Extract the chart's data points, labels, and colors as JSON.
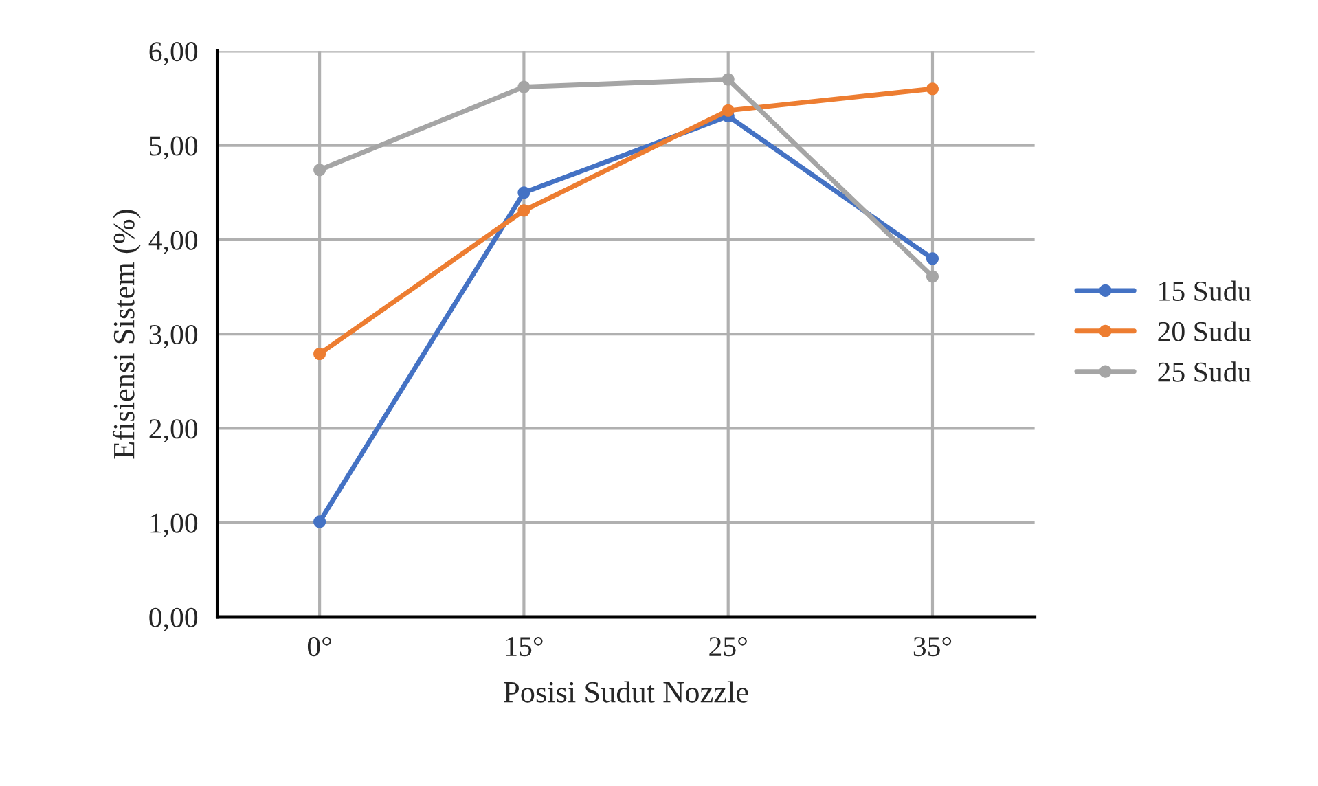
{
  "chart_data": {
    "type": "line",
    "xlabel": "Posisi Sudut Nozzle",
    "ylabel": "Efisiensi Sistem (%)",
    "categories": [
      "0°",
      "15°",
      "25°",
      "35°"
    ],
    "series": [
      {
        "name": "15 Sudu",
        "color": "#4472c4",
        "values": [
          1.01,
          4.5,
          5.31,
          3.8
        ]
      },
      {
        "name": "20 Sudu",
        "color": "#ed7d31",
        "values": [
          2.79,
          4.31,
          5.37,
          5.6
        ]
      },
      {
        "name": "25 Sudu",
        "color": "#a5a5a5",
        "values": [
          4.74,
          5.62,
          5.7,
          3.61
        ]
      }
    ],
    "ylim": [
      0,
      6
    ],
    "yticks": [
      {
        "value": 0,
        "label": "0,00"
      },
      {
        "value": 1,
        "label": "1,00"
      },
      {
        "value": 2,
        "label": "2,00"
      },
      {
        "value": 3,
        "label": "3,00"
      },
      {
        "value": 4,
        "label": "4,00"
      },
      {
        "value": 5,
        "label": "5,00"
      },
      {
        "value": 6,
        "label": "6,00"
      }
    ],
    "grid": true,
    "legend": "right",
    "marker": "circle",
    "line_style": "solid"
  }
}
